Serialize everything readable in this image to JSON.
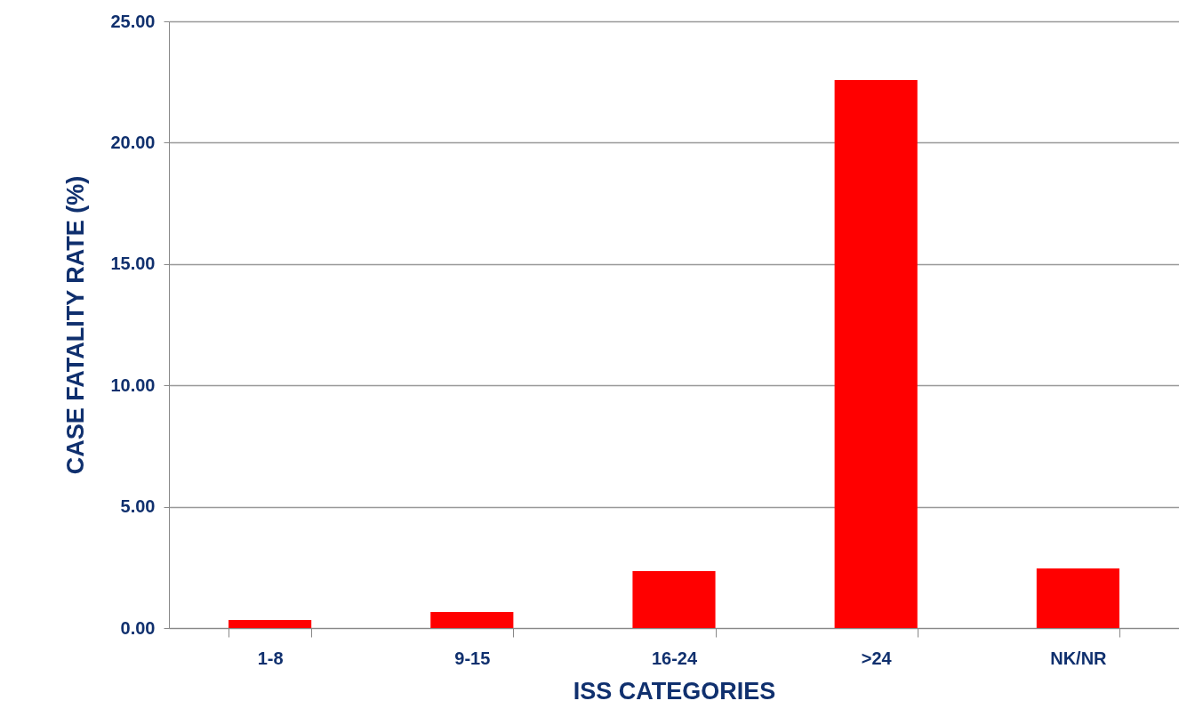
{
  "chart_data": {
    "type": "bar",
    "xlabel": "ISS CATEGORIES",
    "ylabel": "CASE FATALITY RATE (%)",
    "categories": [
      "1-8",
      "9-15",
      "16-24",
      ">24",
      "NK/NR"
    ],
    "values": [
      0.33,
      0.66,
      2.35,
      22.58,
      2.46
    ],
    "color": "#ff0000",
    "ylim": [
      0,
      25
    ],
    "yticks": [
      {
        "value": 0,
        "label": "0.00"
      },
      {
        "value": 5,
        "label": "5.00"
      },
      {
        "value": 10,
        "label": "10.00"
      },
      {
        "value": 15,
        "label": "15.00"
      },
      {
        "value": 20,
        "label": "20.00"
      },
      {
        "value": 25,
        "label": "25.00"
      }
    ],
    "grid": "y"
  }
}
